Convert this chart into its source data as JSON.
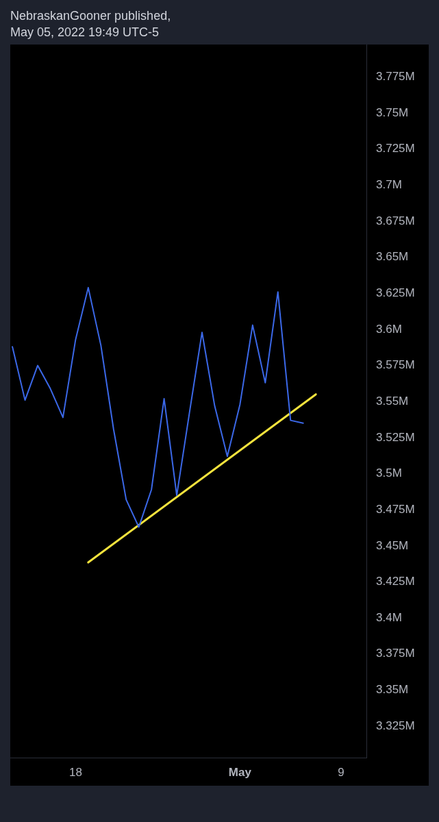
{
  "chart_data": {
    "type": "line",
    "title": "NebraskanGooner published,",
    "subtitle": "May 05, 2022 19:49 UTC-5",
    "x": [
      "2022-04-13",
      "2022-04-14",
      "2022-04-15",
      "2022-04-16",
      "2022-04-17",
      "2022-04-18",
      "2022-04-19",
      "2022-04-20",
      "2022-04-21",
      "2022-04-22",
      "2022-04-23",
      "2022-04-24",
      "2022-04-25",
      "2022-04-26",
      "2022-04-27",
      "2022-04-28",
      "2022-04-29",
      "2022-04-30",
      "2022-05-01",
      "2022-05-02",
      "2022-05-03",
      "2022-05-04",
      "2022-05-05",
      "2022-05-06"
    ],
    "series": [
      {
        "color": "#3b68e8",
        "values": [
          3588000,
          3551000,
          3575000,
          3559000,
          3539000,
          3593000,
          3629000,
          3589000,
          3531000,
          3482000,
          3463000,
          3489000,
          3552000,
          3485000,
          3542000,
          3598000,
          3547000,
          3512000,
          3548000,
          3603000,
          3563000,
          3626000,
          3537000,
          3535000
        ]
      },
      {
        "type": "line",
        "color": "#f5e33d",
        "x": [
          "2022-04-19",
          "2022-05-07"
        ],
        "values": [
          3438500,
          3555000
        ]
      }
    ],
    "xlim": [
      "2022-04-12T20:00",
      "2022-05-11"
    ],
    "xticks": [
      {
        "value": "2022-04-18",
        "label": "18"
      },
      {
        "value": "2022-05-01",
        "label": "May"
      },
      {
        "value": "2022-05-09",
        "label": "9"
      }
    ],
    "ylim": [
      3303200,
      3797500
    ],
    "yticks": [
      {
        "value": 3325000,
        "label": "3.325M"
      },
      {
        "value": 3350000,
        "label": "3.35M"
      },
      {
        "value": 3375000,
        "label": "3.375M"
      },
      {
        "value": 3400000,
        "label": "3.4M"
      },
      {
        "value": 3425000,
        "label": "3.425M"
      },
      {
        "value": 3450000,
        "label": "3.45M"
      },
      {
        "value": 3475000,
        "label": "3.475M"
      },
      {
        "value": 3500000,
        "label": "3.5M"
      },
      {
        "value": 3525000,
        "label": "3.525M"
      },
      {
        "value": 3550000,
        "label": "3.55M"
      },
      {
        "value": 3575000,
        "label": "3.575M"
      },
      {
        "value": 3600000,
        "label": "3.6M"
      },
      {
        "value": 3625000,
        "label": "3.625M"
      },
      {
        "value": 3650000,
        "label": "3.65M"
      },
      {
        "value": 3675000,
        "label": "3.675M"
      },
      {
        "value": 3700000,
        "label": "3.7M"
      },
      {
        "value": 3725000,
        "label": "3.725M"
      },
      {
        "value": 3750000,
        "label": "3.75M"
      },
      {
        "value": 3775000,
        "label": "3.775M"
      }
    ],
    "grid": false,
    "legend": false,
    "marker": "none",
    "line_style": "solid"
  }
}
